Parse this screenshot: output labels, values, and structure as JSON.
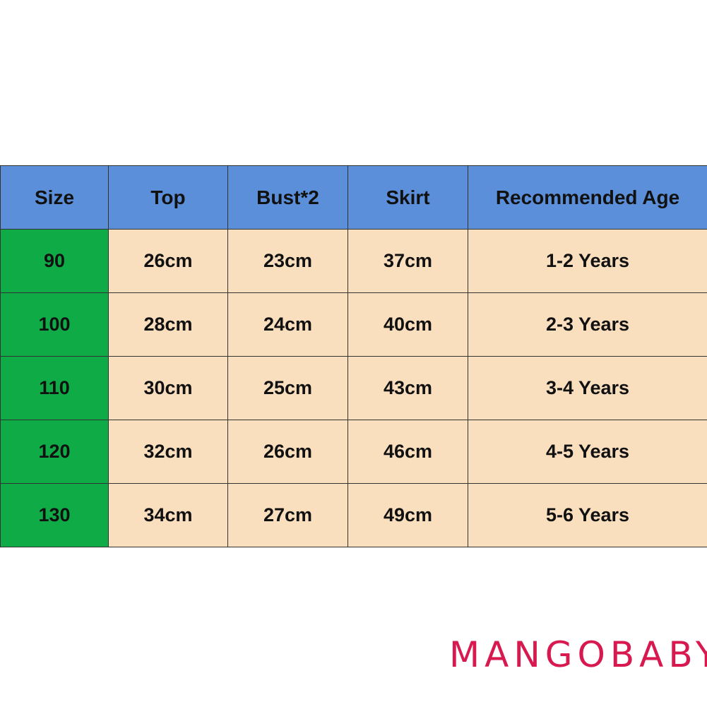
{
  "colors": {
    "header_bg": "#5b8fd9",
    "size_bg": "#0eab46",
    "cell_bg": "#fadfbf",
    "brand": "#d8194f"
  },
  "table": {
    "headers": [
      "Size",
      "Top",
      "Bust*2",
      "Skirt",
      "Recommended Age"
    ],
    "rows": [
      {
        "size": "90",
        "top": "26cm",
        "bust": "23cm",
        "skirt": "37cm",
        "age": "1-2 Years"
      },
      {
        "size": "100",
        "top": "28cm",
        "bust": "24cm",
        "skirt": "40cm",
        "age": "2-3 Years"
      },
      {
        "size": "110",
        "top": "30cm",
        "bust": "25cm",
        "skirt": "43cm",
        "age": "3-4 Years"
      },
      {
        "size": "120",
        "top": "32cm",
        "bust": "26cm",
        "skirt": "46cm",
        "age": "4-5 Years"
      },
      {
        "size": "130",
        "top": "34cm",
        "bust": "27cm",
        "skirt": "49cm",
        "age": "5-6 Years"
      }
    ]
  },
  "brand": {
    "logo_text": "MANGOBABY"
  }
}
